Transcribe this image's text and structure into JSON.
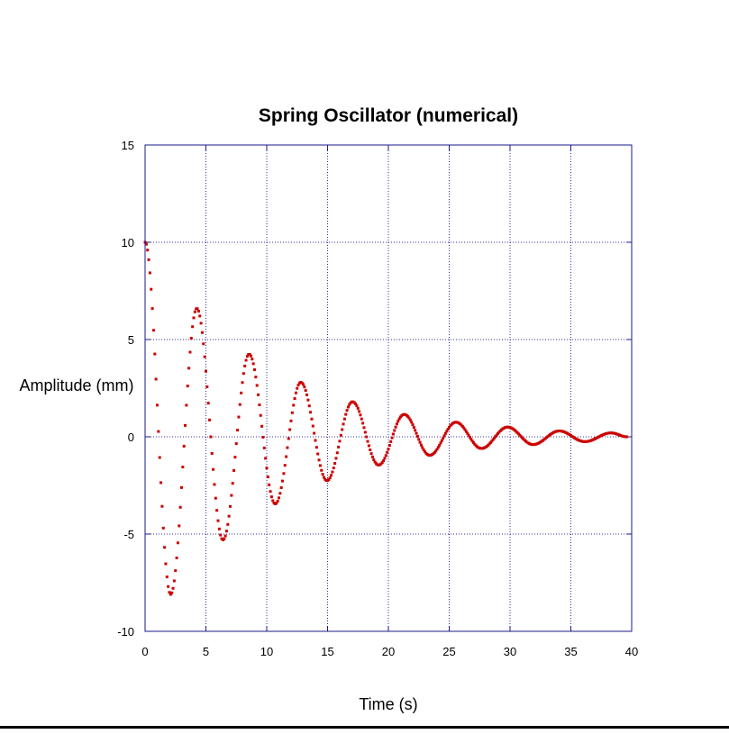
{
  "chart_data": {
    "type": "scatter",
    "title": "Spring Oscillator (numerical)",
    "xlabel": "Time (s)",
    "ylabel": "Amplitude (mm)",
    "xlim": [
      0,
      40
    ],
    "ylim": [
      -10,
      15
    ],
    "xticks": [
      "0",
      "5",
      "10",
      "15",
      "20",
      "25",
      "30",
      "35",
      "40"
    ],
    "yticks": [
      "-10",
      "-5",
      "0",
      "5",
      "10",
      "15"
    ],
    "grid": true,
    "legend": "none",
    "colors": {
      "points": "#cc0000",
      "frame": "#1a1a8c",
      "grid": "#333399"
    },
    "series": [
      {
        "x_start": 0,
        "x_end": 39.6,
        "x_step": 0.1,
        "marker": "square",
        "points": [
          [
            0,
            10
          ],
          [
            2.1,
            -8.1
          ],
          [
            4.25,
            6.6
          ],
          [
            6.4,
            -5.3
          ],
          [
            8.55,
            4.25
          ],
          [
            10.7,
            -3.45
          ],
          [
            12.8,
            2.8
          ],
          [
            14.95,
            -2.25
          ],
          [
            17.05,
            1.8
          ],
          [
            19.2,
            -1.45
          ],
          [
            21.3,
            1.15
          ],
          [
            23.4,
            -0.95
          ],
          [
            25.55,
            0.75
          ],
          [
            27.65,
            -0.6
          ],
          [
            29.8,
            0.5
          ],
          [
            31.9,
            -0.4
          ],
          [
            34.05,
            0.3
          ],
          [
            36.15,
            -0.25
          ],
          [
            38.3,
            0.2
          ],
          [
            39.6,
            0
          ]
        ]
      }
    ]
  }
}
